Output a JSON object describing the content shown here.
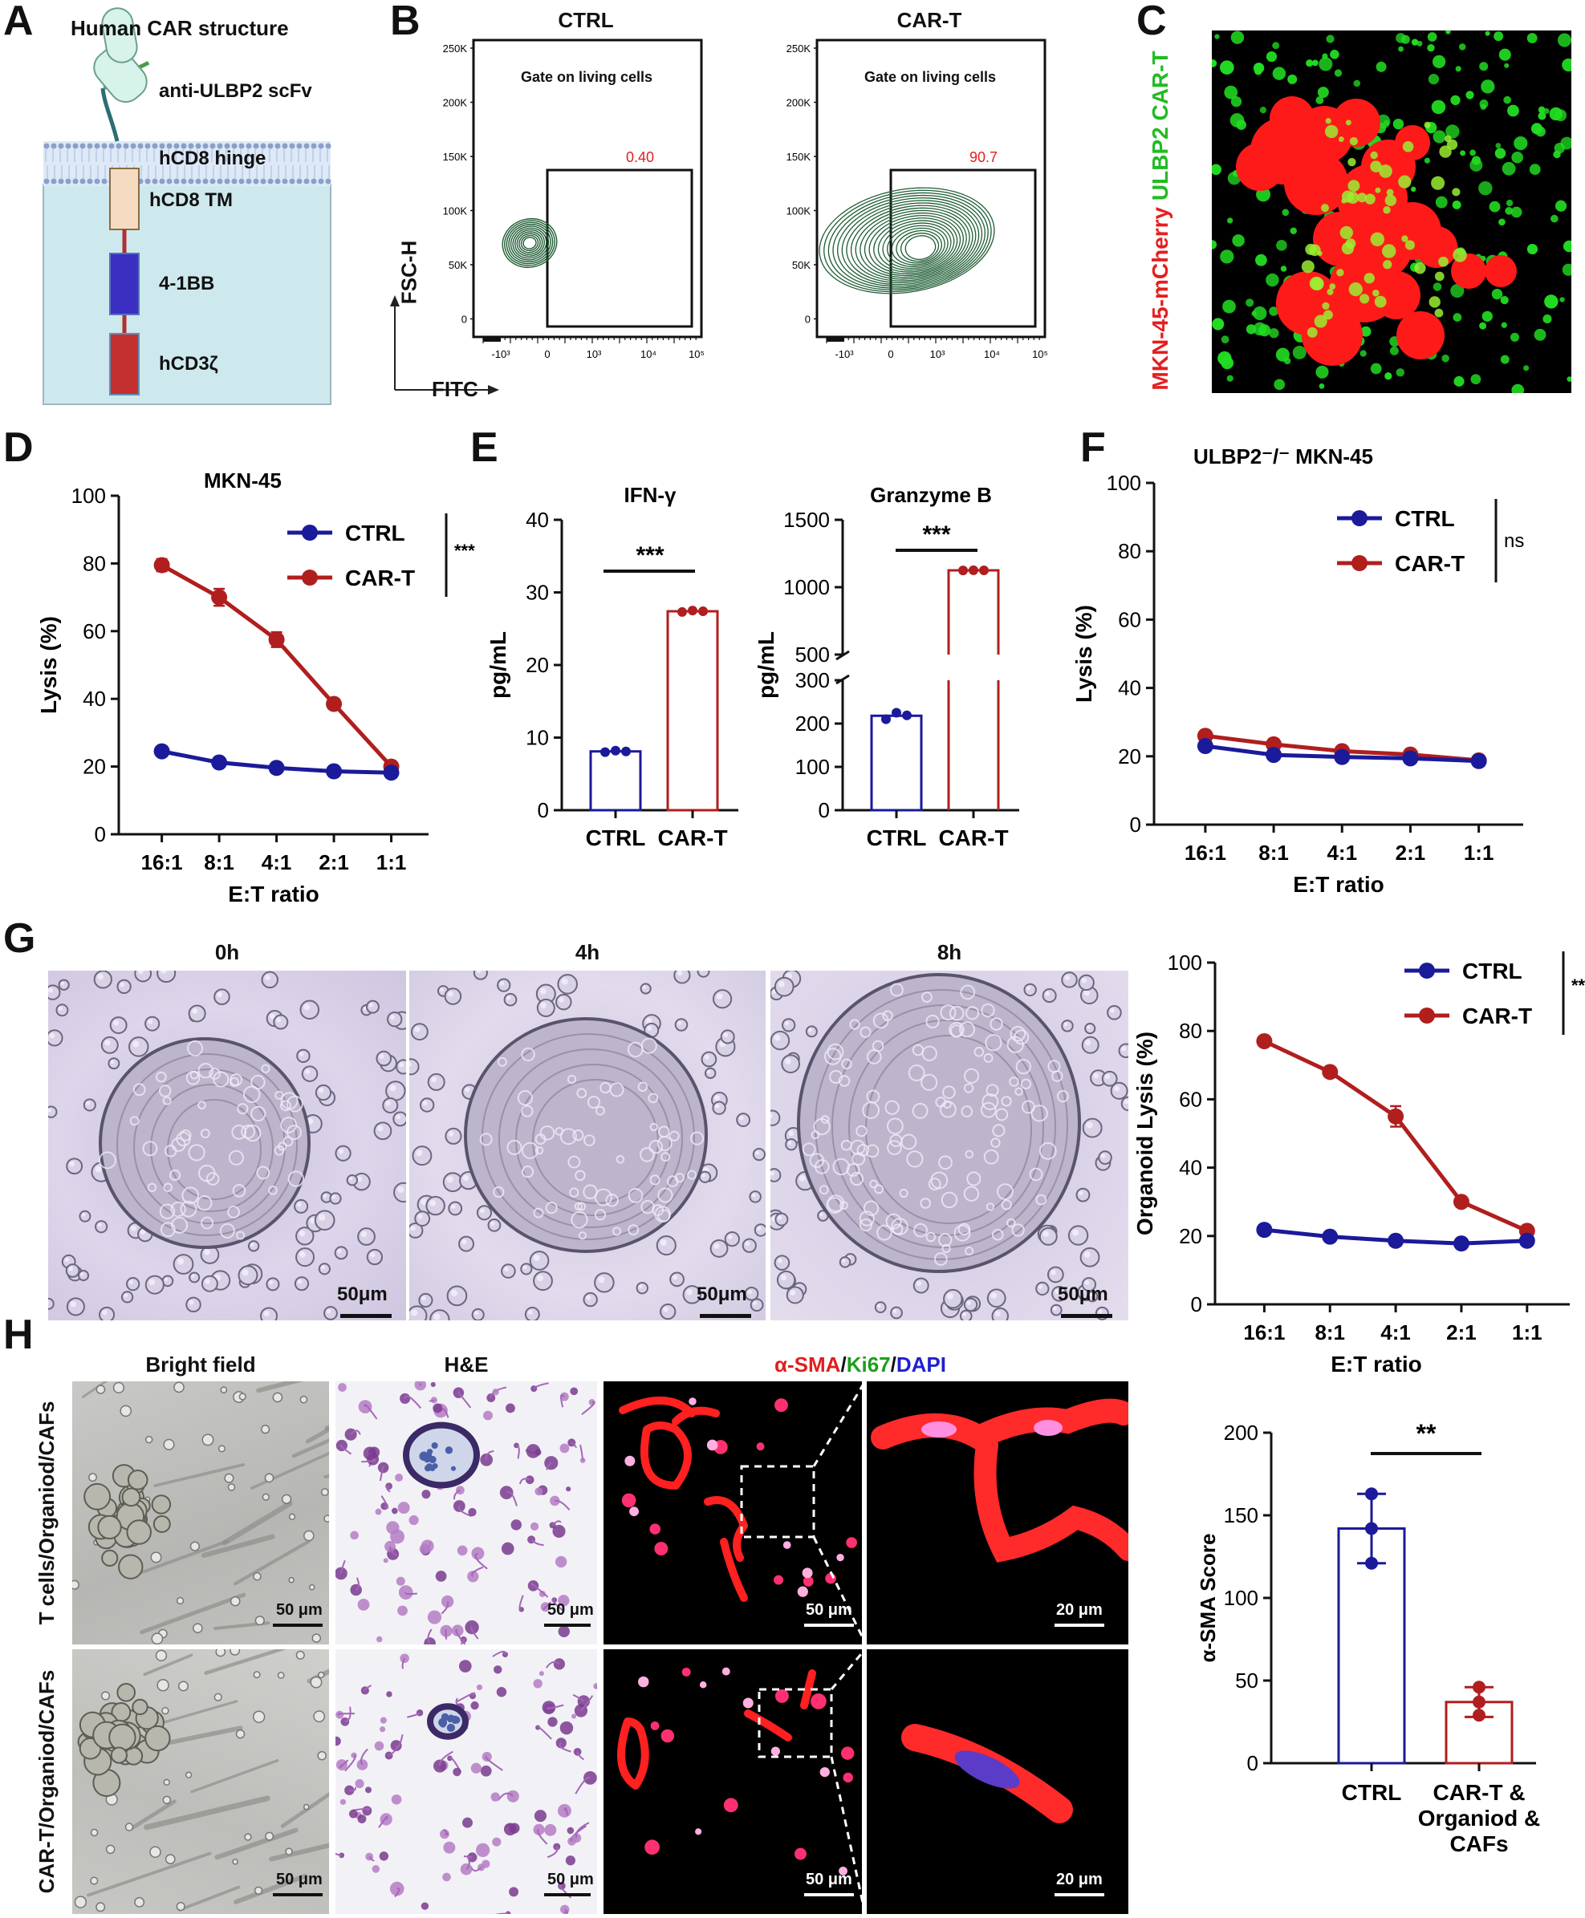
{
  "colors": {
    "ctrl": "#1a1a9a",
    "cart": "#b01e1e",
    "flow": "#1e5c34",
    "cell_red": "#ff1a1a",
    "cell_green": "#22dd22"
  },
  "panels": {
    "A": "A",
    "B": "B",
    "C": "C",
    "D": "D",
    "E": "E",
    "F": "F",
    "G": "G",
    "H": "H"
  },
  "panel_a": {
    "title": "Human CAR structure",
    "parts": [
      "anti-ULBP2 scFv",
      "hCD8 hinge",
      "hCD8 TM",
      "4-1BB",
      "hCD3ζ"
    ]
  },
  "panel_b": {
    "plots": [
      {
        "title": "CTRL",
        "gate_label": "Gate on living cells",
        "percent": "0.40"
      },
      {
        "title": "CAR-T",
        "gate_label": "Gate on living cells",
        "percent": "90.7"
      }
    ],
    "y_ticks": [
      "250K",
      "200K",
      "150K",
      "100K",
      "50K",
      "0"
    ],
    "x_ticks": [
      "-10³",
      "0",
      "10³",
      "10⁴",
      "10⁵"
    ],
    "xlabel": "FITC",
    "ylabel": "FSC-H"
  },
  "panel_c": {
    "label_red": "MKN-45-mCherry",
    "label_green": "ULBP2 CAR-T"
  },
  "panel_d": {
    "chart_data": {
      "type": "line",
      "title": "MKN-45",
      "xlabel": "E:T ratio",
      "ylabel": "Lysis (%)",
      "categories": [
        "16:1",
        "8:1",
        "4:1",
        "2:1",
        "1:1"
      ],
      "ylim": [
        0,
        100
      ],
      "yticks": [
        "0",
        "20",
        "40",
        "60",
        "80",
        "100"
      ],
      "series": [
        {
          "name": "CTRL",
          "values": [
            24.5,
            21.2,
            19.6,
            18.6,
            18.2
          ],
          "err": [
            0.5,
            0.5,
            0.5,
            0.5,
            0.5
          ]
        },
        {
          "name": "CAR-T",
          "values": [
            79.5,
            70,
            57.5,
            38.5,
            20
          ],
          "err": [
            1.8,
            2.5,
            2.2,
            0.8,
            1.2
          ]
        }
      ],
      "significance": "***",
      "legend": "top-right"
    }
  },
  "panel_e": {
    "chart_data": [
      {
        "type": "bar",
        "title": "IFN-γ",
        "ylabel": "pg/mL",
        "categories": [
          "CTRL",
          "CAR-T"
        ],
        "values": [
          8.1,
          27.4
        ],
        "points": [
          [
            8.0,
            8.2,
            8.1
          ],
          [
            27.3,
            27.5,
            27.4
          ]
        ],
        "ylim": [
          0,
          40
        ],
        "yticks": [
          "0",
          "10",
          "20",
          "30",
          "40"
        ],
        "significance": "***"
      },
      {
        "type": "bar",
        "title": "Granzyme B",
        "ylabel": "pg/mL",
        "categories": [
          "CTRL",
          "CAR-T"
        ],
        "values": [
          218,
          1125
        ],
        "points": [
          [
            210,
            225,
            219
          ],
          [
            1124,
            1126,
            1125
          ]
        ],
        "ylim": [
          0,
          1500
        ],
        "axis_break": [
          300,
          500
        ],
        "yticks": [
          "0",
          "100",
          "200",
          "300",
          "500",
          "1000",
          "1500"
        ],
        "significance": "***"
      }
    ]
  },
  "panel_f": {
    "chart_data": {
      "type": "line",
      "title": "ULBP2⁻/⁻ MKN-45",
      "xlabel": "E:T ratio",
      "ylabel": "Lysis (%)",
      "categories": [
        "16:1",
        "8:1",
        "4:1",
        "2:1",
        "1:1"
      ],
      "ylim": [
        0,
        100
      ],
      "yticks": [
        "0",
        "20",
        "40",
        "60",
        "80",
        "100"
      ],
      "series": [
        {
          "name": "CTRL",
          "values": [
            23,
            20.4,
            19.8,
            19.4,
            18.6
          ],
          "err": [
            0.5,
            0.5,
            0.5,
            0.5,
            0.5
          ]
        },
        {
          "name": "CAR-T",
          "values": [
            26,
            23.5,
            21.5,
            20.5,
            18.8
          ],
          "err": [
            0.8,
            1.5,
            0.8,
            0.8,
            0.5
          ]
        }
      ],
      "significance": "ns",
      "legend": "top-right"
    }
  },
  "panel_g": {
    "images": [
      {
        "title": "0h",
        "scale": "50μm"
      },
      {
        "title": "4h",
        "scale": "50μm"
      },
      {
        "title": "8h",
        "scale": "50μm"
      }
    ],
    "chart_data": {
      "type": "line",
      "xlabel": "E:T ratio",
      "ylabel": "Organoid Lysis (%)",
      "categories": [
        "16:1",
        "8:1",
        "4:1",
        "2:1",
        "1:1"
      ],
      "ylim": [
        0,
        100
      ],
      "yticks": [
        "0",
        "20",
        "40",
        "60",
        "80",
        "100"
      ],
      "series": [
        {
          "name": "CTRL",
          "values": [
            21.8,
            19.8,
            18.6,
            17.8,
            18.6
          ],
          "err": [
            0.5,
            0.5,
            0.5,
            0.5,
            0.5
          ]
        },
        {
          "name": "CAR-T",
          "values": [
            77,
            68,
            55,
            30,
            21.5
          ],
          "err": [
            0.8,
            1,
            3,
            0.8,
            1
          ]
        }
      ],
      "significance": "***",
      "legend": "top-right"
    }
  },
  "panel_h": {
    "columns": [
      "Bright field",
      "H&E"
    ],
    "stain_title": {
      "a": "α-SMA",
      "sep1": "/",
      "b": "Ki67",
      "sep2": "/",
      "c": "DAPI"
    },
    "rows": [
      "T cells/Organiod/CAFs",
      "CAR-T/Organiod/CAFs"
    ],
    "scale_bars": [
      "50 μm",
      "50 μm",
      "50 μm",
      "20 μm"
    ],
    "chart_data": {
      "type": "bar",
      "ylabel": "α-SMA Score",
      "categories": [
        "CTRL",
        "CAR-T &\nOrganiod &\nCAFs"
      ],
      "category_lines": [
        [
          "CTRL"
        ],
        [
          "CAR-T &",
          "Organiod &",
          "CAFs"
        ]
      ],
      "values": [
        142,
        37
      ],
      "err": [
        21,
        9
      ],
      "points": [
        [
          163,
          121,
          142
        ],
        [
          46,
          29,
          37
        ]
      ],
      "ylim": [
        0,
        200
      ],
      "yticks": [
        "0",
        "50",
        "100",
        "150",
        "200"
      ],
      "significance": "**"
    }
  }
}
